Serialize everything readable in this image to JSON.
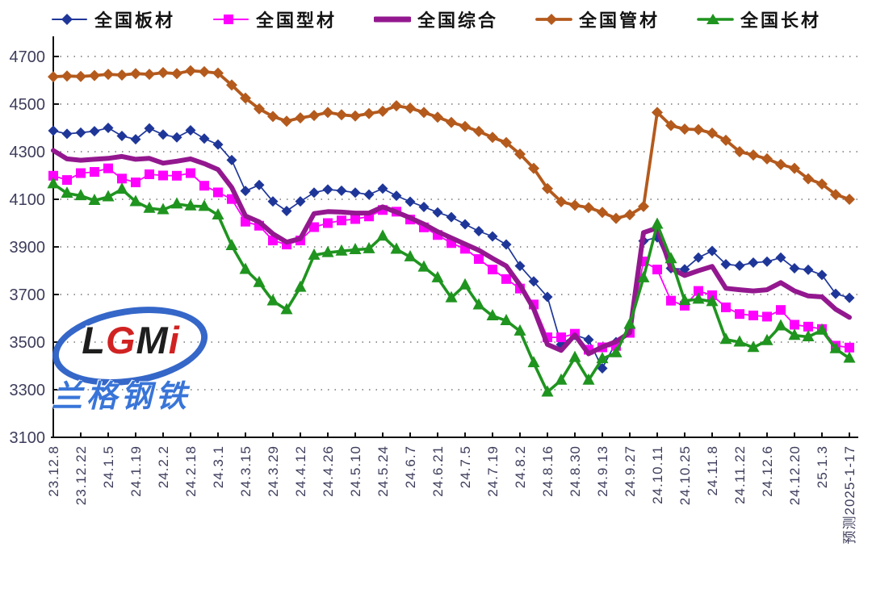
{
  "watermark": {
    "logo_l": "L",
    "logo_g": "G",
    "logo_m": "M",
    "logo_i": "i",
    "company": "兰格钢铁",
    "ellipse_color": "#2b5fc7",
    "company_color": "#2f6ed6",
    "g_color": "#cf1717"
  },
  "chart_data": {
    "type": "line",
    "title": "",
    "xlabel": "",
    "ylabel": "",
    "grid": "dotted horizontal gridlines",
    "legend_position": "top",
    "ylim": [
      3100,
      4700
    ],
    "y_ticks": [
      4700,
      4500,
      4300,
      4100,
      3900,
      3700,
      3500,
      3300,
      3100
    ],
    "x_label_every_n_points": 2,
    "points_per_series": 59,
    "x_labels": [
      "23.12.8",
      "23.12.22",
      "24.1.5",
      "24.1.19",
      "24.2.2",
      "24.2.18",
      "24.3.1",
      "24.3.15",
      "24.3.29",
      "24.4.12",
      "24.4.26",
      "24.5.10",
      "24.5.24",
      "24.6.7",
      "24.6.21",
      "24.7.5",
      "24.7.19",
      "24.8.2",
      "24.8.16",
      "24.8.30",
      "24.9.13",
      "24.9.27",
      "24.10.11",
      "24.10.25",
      "24.11.8",
      "24.11.22",
      "24.12.6",
      "24.12.20",
      "25.1.3",
      "预测2025-1-17"
    ],
    "forecast_label": "预测2025-1-17",
    "series": [
      {
        "key": "plate",
        "name": "全国板材",
        "color": "#1F3699",
        "marker": "diamond",
        "line_width": 1.7,
        "marker_size": 6.5,
        "values": [
          4388,
          4375,
          4380,
          4386,
          4400,
          4366,
          4352,
          4398,
          4372,
          4360,
          4390,
          4355,
          4330,
          4265,
          4135,
          4160,
          4091,
          4051,
          4091,
          4128,
          4141,
          4136,
          4128,
          4120,
          4145,
          4115,
          4090,
          4068,
          4045,
          4025,
          3995,
          3966,
          3944,
          3910,
          3820,
          3755,
          3690,
          3490,
          3530,
          3510,
          3390,
          3500,
          3555,
          3925,
          3940,
          3810,
          3806,
          3855,
          3883,
          3827,
          3821,
          3834,
          3838,
          3855,
          3810,
          3804,
          3782,
          3703,
          3686
        ]
      },
      {
        "key": "section",
        "name": "全国型材",
        "color": "#FF00FF",
        "marker": "square",
        "line_width": 1.8,
        "marker_size": 6,
        "values": [
          4199,
          4181,
          4210,
          4215,
          4230,
          4187,
          4171,
          4205,
          4200,
          4199,
          4210,
          4157,
          4129,
          4101,
          4006,
          3989,
          3927,
          3910,
          3927,
          3983,
          4000,
          4011,
          4017,
          4028,
          4055,
          4048,
          4015,
          3982,
          3950,
          3916,
          3892,
          3849,
          3805,
          3765,
          3725,
          3658,
          3520,
          3520,
          3535,
          3468,
          3478,
          3484,
          3539,
          3839,
          3805,
          3674,
          3653,
          3715,
          3697,
          3646,
          3618,
          3612,
          3607,
          3635,
          3573,
          3565,
          3555,
          3485,
          3477
        ]
      },
      {
        "key": "composite",
        "name": "全国综合",
        "color": "#93188F",
        "marker": "none",
        "line_width": 6,
        "marker_size": 0,
        "values": [
          4305,
          4270,
          4264,
          4268,
          4272,
          4280,
          4268,
          4272,
          4252,
          4260,
          4270,
          4250,
          4225,
          4150,
          4030,
          4005,
          3955,
          3920,
          3935,
          4040,
          4048,
          4046,
          4042,
          4042,
          4068,
          4046,
          4022,
          3996,
          3964,
          3938,
          3912,
          3886,
          3852,
          3820,
          3740,
          3640,
          3490,
          3465,
          3530,
          3451,
          3480,
          3502,
          3540,
          3960,
          3980,
          3810,
          3780,
          3800,
          3818,
          3726,
          3720,
          3715,
          3720,
          3750,
          3715,
          3694,
          3690,
          3638,
          3604
        ]
      },
      {
        "key": "pipe",
        "name": "全国管材",
        "color": "#B45A1D",
        "marker": "diamond",
        "line_width": 3.8,
        "marker_size": 7,
        "values": [
          4615,
          4618,
          4616,
          4620,
          4625,
          4622,
          4628,
          4625,
          4632,
          4628,
          4640,
          4636,
          4630,
          4580,
          4525,
          4480,
          4448,
          4428,
          4442,
          4452,
          4465,
          4455,
          4450,
          4460,
          4470,
          4493,
          4483,
          4465,
          4445,
          4423,
          4406,
          4385,
          4360,
          4338,
          4290,
          4230,
          4145,
          4090,
          4075,
          4065,
          4045,
          4020,
          4035,
          4070,
          4465,
          4410,
          4395,
          4393,
          4378,
          4348,
          4300,
          4286,
          4270,
          4246,
          4230,
          4186,
          4164,
          4120,
          4100
        ]
      },
      {
        "key": "long",
        "name": "全国长材",
        "color": "#1F941F",
        "marker": "triangle",
        "line_width": 3.6,
        "marker_size": 7.5,
        "values": [
          4165,
          4125,
          4115,
          4095,
          4110,
          4142,
          4090,
          4062,
          4056,
          4080,
          4072,
          4070,
          4034,
          3905,
          3805,
          3750,
          3673,
          3636,
          3730,
          3865,
          3876,
          3882,
          3888,
          3892,
          3945,
          3890,
          3858,
          3815,
          3770,
          3686,
          3740,
          3656,
          3610,
          3590,
          3546,
          3413,
          3290,
          3340,
          3435,
          3340,
          3430,
          3455,
          3575,
          3770,
          3995,
          3850,
          3674,
          3680,
          3670,
          3511,
          3500,
          3477,
          3506,
          3568,
          3528,
          3522,
          3550,
          3472,
          3432
        ]
      }
    ],
    "style": {
      "axis_color": "#111111",
      "tick_label_color": "#3D3D5C",
      "grid_dot_color": "#5a5a5a",
      "y_tick_font_size": 20,
      "x_tick_font_size": 17
    }
  }
}
